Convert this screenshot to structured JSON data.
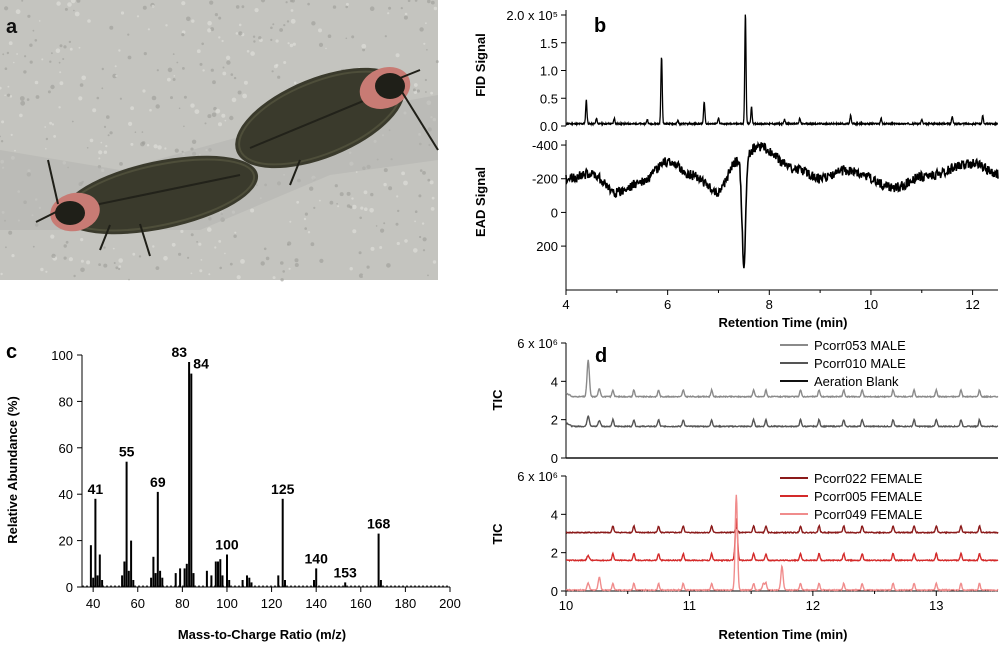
{
  "panels": {
    "a": "a",
    "b": "b",
    "c": "c",
    "d": "d"
  },
  "photo": {
    "description_icon": "fireflies-mating-photo-icon",
    "colors": {
      "bg": "#bdbdb8",
      "bug": "#3a3a2c",
      "pronotum": "#c87b74"
    }
  },
  "chart_data": [
    {
      "id": "b",
      "type": "line",
      "xlabel": "Retention Time (min)",
      "xlim": [
        4,
        12.5
      ],
      "xticks": [
        "4",
        "6",
        "8",
        "10",
        "12"
      ],
      "subplots": [
        {
          "ylabel": "FID Signal",
          "ylim": [
            0,
            200000.0
          ],
          "yticks": [
            "2.0 x 10⁵",
            "1.5",
            "1.0",
            "0.5",
            "0.0"
          ],
          "peaks": [
            {
              "x": 4.4,
              "y": 0.43
            },
            {
              "x": 5.88,
              "y": 1.2
            },
            {
              "x": 6.72,
              "y": 0.4
            },
            {
              "x": 7.53,
              "y": 1.98
            },
            {
              "x": 7.65,
              "y": 0.3
            },
            {
              "x": 4.6,
              "y": 0.1
            },
            {
              "x": 4.95,
              "y": 0.1
            },
            {
              "x": 5.6,
              "y": 0.08
            },
            {
              "x": 6.2,
              "y": 0.06
            },
            {
              "x": 7.0,
              "y": 0.1
            },
            {
              "x": 8.3,
              "y": 0.08
            },
            {
              "x": 8.6,
              "y": 0.1
            },
            {
              "x": 9.6,
              "y": 0.15
            },
            {
              "x": 10.2,
              "y": 0.1
            },
            {
              "x": 11.0,
              "y": 0.08
            },
            {
              "x": 11.6,
              "y": 0.14
            },
            {
              "x": 12.2,
              "y": 0.14
            }
          ]
        },
        {
          "ylabel": "EAD Signal",
          "ylim": [
            330,
            -430
          ],
          "yticks": [
            "-400",
            "-200",
            "0",
            "200"
          ],
          "features": [
            {
              "x": 4.0,
              "y": -200
            },
            {
              "x": 4.5,
              "y": -230
            },
            {
              "x": 5.0,
              "y": -120
            },
            {
              "x": 5.5,
              "y": -180
            },
            {
              "x": 6.0,
              "y": -300
            },
            {
              "x": 6.5,
              "y": -220
            },
            {
              "x": 7.0,
              "y": -120
            },
            {
              "x": 7.35,
              "y": -300
            },
            {
              "x": 7.5,
              "y": 330
            },
            {
              "x": 7.8,
              "y": -390
            },
            {
              "x": 8.5,
              "y": -260
            },
            {
              "x": 9.0,
              "y": -200
            },
            {
              "x": 9.5,
              "y": -250
            },
            {
              "x": 10.5,
              "y": -150
            },
            {
              "x": 11.0,
              "y": -210
            },
            {
              "x": 12.0,
              "y": -290
            },
            {
              "x": 12.5,
              "y": -230
            }
          ]
        }
      ]
    },
    {
      "id": "c",
      "type": "bar",
      "xlabel": "Mass-to-Charge Ratio (m/z)",
      "ylabel": "Relative Abundance (%)",
      "xlim": [
        35,
        200
      ],
      "ylim": [
        0,
        100
      ],
      "xticks": [
        "40",
        "60",
        "80",
        "100",
        "120",
        "140",
        "160",
        "180",
        "200"
      ],
      "yticks": [
        "0",
        "20",
        "40",
        "60",
        "80",
        "100"
      ],
      "peaks": [
        {
          "mz": 39,
          "value": 18
        },
        {
          "mz": 40,
          "value": 4
        },
        {
          "mz": 41,
          "value": 38,
          "label": "41"
        },
        {
          "mz": 42,
          "value": 5
        },
        {
          "mz": 43,
          "value": 14
        },
        {
          "mz": 44,
          "value": 3
        },
        {
          "mz": 53,
          "value": 5
        },
        {
          "mz": 54,
          "value": 11
        },
        {
          "mz": 55,
          "value": 54,
          "label": "55"
        },
        {
          "mz": 56,
          "value": 7
        },
        {
          "mz": 57,
          "value": 20
        },
        {
          "mz": 58,
          "value": 3
        },
        {
          "mz": 66,
          "value": 4
        },
        {
          "mz": 67,
          "value": 13
        },
        {
          "mz": 68,
          "value": 6
        },
        {
          "mz": 69,
          "value": 41,
          "label": "69"
        },
        {
          "mz": 70,
          "value": 7
        },
        {
          "mz": 71,
          "value": 4
        },
        {
          "mz": 77,
          "value": 6
        },
        {
          "mz": 79,
          "value": 8
        },
        {
          "mz": 81,
          "value": 8
        },
        {
          "mz": 82,
          "value": 10
        },
        {
          "mz": 83,
          "value": 97,
          "label": "83"
        },
        {
          "mz": 84,
          "value": 92,
          "label": "84"
        },
        {
          "mz": 85,
          "value": 6
        },
        {
          "mz": 91,
          "value": 7
        },
        {
          "mz": 93,
          "value": 5
        },
        {
          "mz": 95,
          "value": 11
        },
        {
          "mz": 96,
          "value": 11
        },
        {
          "mz": 97,
          "value": 12
        },
        {
          "mz": 98,
          "value": 5
        },
        {
          "mz": 100,
          "value": 14,
          "label": "100"
        },
        {
          "mz": 101,
          "value": 3
        },
        {
          "mz": 107,
          "value": 3
        },
        {
          "mz": 109,
          "value": 5
        },
        {
          "mz": 110,
          "value": 4
        },
        {
          "mz": 111,
          "value": 2
        },
        {
          "mz": 123,
          "value": 5
        },
        {
          "mz": 125,
          "value": 38,
          "label": "125"
        },
        {
          "mz": 126,
          "value": 3
        },
        {
          "mz": 139,
          "value": 3
        },
        {
          "mz": 140,
          "value": 8,
          "label": "140"
        },
        {
          "mz": 153,
          "value": 2,
          "label": "153"
        },
        {
          "mz": 168,
          "value": 23,
          "label": "168"
        },
        {
          "mz": 169,
          "value": 3
        }
      ]
    },
    {
      "id": "d",
      "type": "line",
      "xlabel": "Retention Time (min)",
      "xlim": [
        10,
        13.5
      ],
      "xticks": [
        "10",
        "11",
        "12",
        "13"
      ],
      "subplots": [
        {
          "ylabel": "TIC",
          "ylim": [
            0,
            6
          ],
          "yticks": [
            "6 x 10⁶",
            "4",
            "2",
            "0"
          ],
          "legend": "top-right",
          "series": [
            {
              "name": "Pcorr053 MALE",
              "color": "#8a8a8a",
              "baseline": 3.2,
              "peaks": [
                {
                  "x": 10.18,
                  "y": 5.1
                },
                {
                  "x": 10.27,
                  "y": 3.6
                }
              ]
            },
            {
              "name": "Pcorr010 MALE",
              "color": "#555555",
              "baseline": 1.65,
              "peaks": [
                {
                  "x": 10.18,
                  "y": 2.2
                },
                {
                  "x": 10.27,
                  "y": 1.95
                }
              ]
            },
            {
              "name": "Aeration Blank",
              "color": "#111111",
              "baseline": 0.0,
              "peaks": []
            }
          ]
        },
        {
          "ylabel": "TIC",
          "ylim": [
            0,
            6
          ],
          "yticks": [
            "6 x 10⁶",
            "4",
            "2",
            "0"
          ],
          "legend": "top-right",
          "series": [
            {
              "name": "Pcorr022 FEMALE",
              "color": "#8b1a1a",
              "baseline": 3.05,
              "peaks": [
                {
                  "x": 11.38,
                  "y": 3.3
                }
              ]
            },
            {
              "name": "Pcorr005 FEMALE",
              "color": "#d42a2a",
              "baseline": 1.6,
              "peaks": [
                {
                  "x": 11.38,
                  "y": 3.8
                },
                {
                  "x": 10.18,
                  "y": 1.85
                }
              ]
            },
            {
              "name": "Pcorr049 FEMALE",
              "color": "#f08c8c",
              "baseline": 0.05,
              "peaks": [
                {
                  "x": 11.38,
                  "y": 5.0
                },
                {
                  "x": 11.75,
                  "y": 1.3
                },
                {
                  "x": 10.18,
                  "y": 0.4
                },
                {
                  "x": 10.27,
                  "y": 0.7
                },
                {
                  "x": 11.6,
                  "y": 0.4
                }
              ]
            }
          ]
        }
      ]
    }
  ]
}
